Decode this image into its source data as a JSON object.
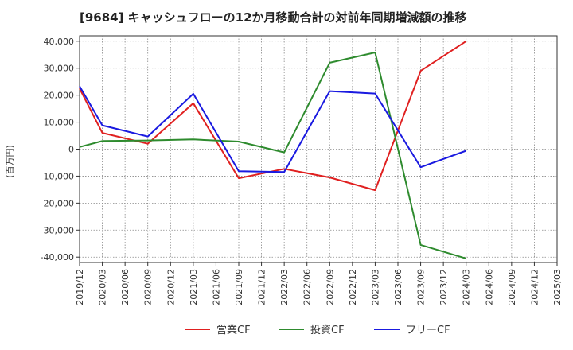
{
  "chart_data": {
    "type": "line",
    "title": "[9684]  キャッシュフローの12か月移動合計の対前年同期増減額の推移",
    "xlabel": "",
    "ylabel": "(百万円)",
    "ylim": [
      -42000,
      42000
    ],
    "yticks": [
      40000,
      30000,
      20000,
      10000,
      0,
      -10000,
      -20000,
      -30000,
      -40000
    ],
    "ytick_labels": [
      "40,000",
      "30,000",
      "20,000",
      "10,000",
      "0",
      "-10,000",
      "-20,000",
      "-30,000",
      "-40,000"
    ],
    "categories": [
      "2019/12",
      "2020/03",
      "2020/06",
      "2020/09",
      "2020/12",
      "2021/03",
      "2021/06",
      "2021/09",
      "2021/12",
      "2022/03",
      "2022/06",
      "2022/09",
      "2022/12",
      "2023/03",
      "2023/06",
      "2023/09",
      "2023/12",
      "2024/03",
      "2024/06",
      "2024/09",
      "2024/12",
      "2025/03"
    ],
    "grid": true,
    "legend_position": "bottom",
    "series": [
      {
        "name": "営業CF",
        "color": "#e02020",
        "values": [
          22500,
          6000,
          null,
          2000,
          null,
          17000,
          null,
          -10800,
          null,
          -7300,
          null,
          -10500,
          null,
          -15200,
          null,
          29000,
          null,
          40000,
          null,
          null,
          null,
          null
        ]
      },
      {
        "name": "投資CF",
        "color": "#2e8b2e",
        "values": [
          800,
          3000,
          null,
          3200,
          null,
          3600,
          null,
          2800,
          null,
          -1200,
          null,
          32000,
          null,
          35800,
          null,
          -35500,
          null,
          -40500,
          null,
          null,
          null,
          null
        ]
      },
      {
        "name": "フリーCF",
        "color": "#1a1ae0",
        "values": [
          23300,
          8800,
          null,
          4700,
          null,
          20500,
          null,
          -8200,
          null,
          -8500,
          null,
          21500,
          null,
          20600,
          null,
          -6700,
          null,
          -600,
          null,
          null,
          null,
          null
        ]
      }
    ]
  }
}
